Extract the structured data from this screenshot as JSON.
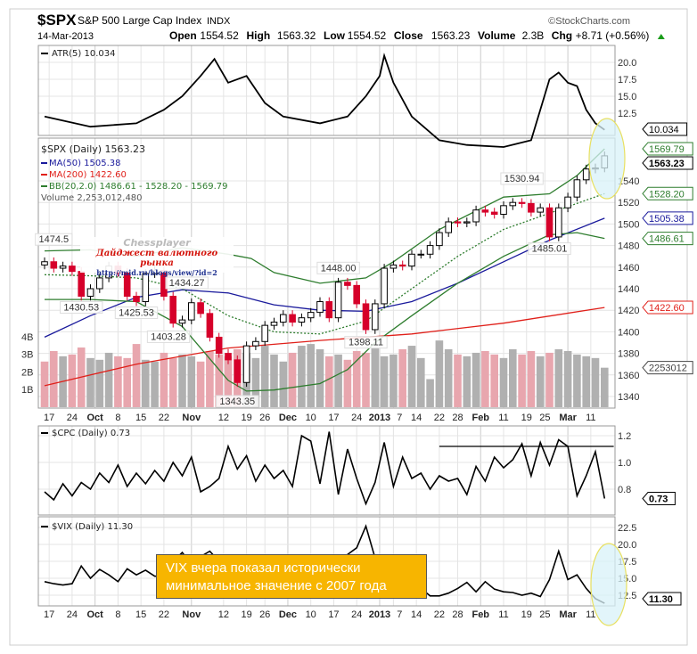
{
  "header": {
    "symbol": "$SPX",
    "name": "S&P 500 Large Cap Index",
    "exchange": "INDX",
    "date": "14-Mar-2013",
    "copyright": "©StockCharts.com",
    "open_label": "Open",
    "open": "1554.52",
    "high_label": "High",
    "high": "1563.32",
    "low_label": "Low",
    "low": "1554.52",
    "close_label": "Close",
    "close": "1563.23",
    "volume_label": "Volume",
    "volume": "2.3B",
    "chg_label": "Chg",
    "chg": "+8.71 (+0.56%)"
  },
  "legends": {
    "atr": "ATR(5) 10.034",
    "spx": "$SPX (Daily) 1563.23",
    "ma50": "MA(50) 1505.38",
    "ma200": "MA(200) 1422.60",
    "bb": "BB(20,2.0) 1486.61 - 1528.20 - 1569.79",
    "volume": "Volume 2,253,012,480",
    "cpc": "$CPC (Daily) 0.73",
    "vix": "$VIX (Daily) 11.30"
  },
  "watermark": {
    "title": "Chessplayer",
    "subtitle": "Дайджест валютного рынка",
    "url": "http://mid.ru/blogs/view/?id=2"
  },
  "callout": {
    "line1": "VIX вчера показал исторически",
    "line2": "минимальное значение с 2007 года"
  },
  "colors": {
    "up": "#ffffff",
    "down": "#d6002a",
    "ma50": "#1a1a9c",
    "ma200": "#e0201a",
    "bb": "#2e7d2e",
    "vol_up": "#b0b0b0",
    "vol_down": "#e8a6ae",
    "callout": "#f7b500",
    "highlight": "#d8f2f8"
  },
  "chart_data": [
    {
      "type": "line",
      "title": "ATR(5)",
      "x_index": [
        0,
        10,
        20,
        26,
        30,
        34,
        37,
        40,
        44,
        48,
        52,
        60,
        66,
        70,
        73,
        74,
        76,
        80,
        86,
        92,
        100,
        106,
        108,
        110,
        112,
        114,
        116,
        118,
        120,
        122
      ],
      "values": [
        12,
        10.5,
        11,
        13,
        15,
        18,
        20.5,
        17,
        18,
        14,
        12,
        11,
        12,
        15,
        18,
        21,
        17,
        12,
        8.5,
        7.8,
        7.5,
        8.5,
        13,
        17.5,
        18.5,
        17,
        16.5,
        13,
        11,
        10.034
      ],
      "ylim": [
        8,
        21.5
      ],
      "yticks": [
        "20.0",
        "17.5",
        "15.0",
        "12.5"
      ],
      "last_label": "10.034"
    },
    {
      "type": "candlestick",
      "title": "$SPX (Daily)",
      "x_index_step": 2,
      "closes": [
        1465,
        1459,
        1461,
        1456,
        1433,
        1440,
        1450,
        1461,
        1455,
        1433,
        1428,
        1454,
        1457,
        1433,
        1408,
        1411,
        1427,
        1417,
        1395,
        1380,
        1374,
        1353,
        1387,
        1391,
        1406,
        1409,
        1416,
        1409,
        1413,
        1418,
        1428,
        1413,
        1446,
        1443,
        1426,
        1402,
        1426,
        1459,
        1462,
        1461,
        1472,
        1472,
        1480,
        1492,
        1502,
        1501,
        1502,
        1513,
        1511,
        1509,
        1517,
        1520,
        1519,
        1511,
        1515,
        1488,
        1515,
        1525,
        1541,
        1551,
        1552,
        1563.23
      ],
      "volume_billions": [
        2.6,
        3.2,
        2.9,
        3.0,
        3.4,
        2.8,
        2.7,
        3.1,
        2.9,
        2.8,
        3.6,
        2.7,
        2.6,
        3.1,
        2.8,
        3.0,
        2.9,
        2.6,
        3.2,
        3.0,
        2.9,
        3.3,
        3.1,
        2.8,
        3.5,
        3.0,
        2.6,
        3.1,
        3.5,
        3.6,
        3.3,
        2.9,
        3.0,
        2.7,
        3.2,
        3.1,
        3.4,
        2.9,
        3.0,
        3.3,
        3.5,
        2.8,
        1.6,
        3.8,
        3.3,
        3.0,
        2.9,
        3.1,
        3.2,
        3.0,
        2.8,
        3.3,
        3.0,
        3.2,
        2.9,
        3.1,
        3.3,
        3.2,
        3.0,
        2.9,
        2.8,
        2.25
      ],
      "ma50": {
        "x_index": [
          0,
          10,
          20,
          30,
          40,
          50,
          60,
          70,
          80,
          90,
          100,
          110,
          122
        ],
        "values": [
          1395,
          1415,
          1432,
          1439,
          1436,
          1425,
          1420,
          1419,
          1428,
          1445,
          1465,
          1485,
          1505.38
        ]
      },
      "ma200": {
        "x_index": [
          0,
          20,
          40,
          60,
          80,
          100,
          122
        ],
        "values": [
          1350,
          1370,
          1385,
          1392,
          1398,
          1408,
          1422.6
        ]
      },
      "bb_upper": {
        "x_index": [
          0,
          10,
          20,
          30,
          40,
          45,
          50,
          60,
          70,
          76,
          86,
          100,
          110,
          116,
          122
        ],
        "values": [
          1475,
          1476,
          1470,
          1478,
          1472,
          1468,
          1455,
          1445,
          1450,
          1465,
          1495,
          1525,
          1528,
          1545,
          1569.79
        ]
      },
      "bb_mid": {
        "x_index": [
          0,
          10,
          20,
          30,
          40,
          50,
          60,
          70,
          80,
          90,
          100,
          110,
          122
        ],
        "values": [
          1453,
          1452,
          1450,
          1440,
          1415,
          1400,
          1398,
          1410,
          1440,
          1470,
          1495,
          1510,
          1528.2
        ]
      },
      "bb_lower": {
        "x_index": [
          0,
          10,
          20,
          30,
          40,
          44,
          50,
          60,
          66,
          72,
          80,
          90,
          100,
          110,
          116,
          122
        ],
        "values": [
          1430,
          1430,
          1428,
          1405,
          1355,
          1345,
          1346,
          1352,
          1365,
          1390,
          1415,
          1445,
          1470,
          1490,
          1492,
          1486.61
        ]
      },
      "annotations": [
        {
          "i": 2,
          "value": 1474.51,
          "label": "1474.5",
          "pos": "above"
        },
        {
          "i": 8,
          "value": 1430.53,
          "label": "1430.53",
          "pos": "below"
        },
        {
          "i": 20,
          "value": 1425.53,
          "label": "1425.53",
          "pos": "below"
        },
        {
          "i": 31,
          "value": 1434.27,
          "label": "1434.27",
          "pos": "above"
        },
        {
          "i": 27,
          "value": 1403.28,
          "label": "1403.28",
          "pos": "below"
        },
        {
          "i": 42,
          "value": 1343.35,
          "label": "1343.35",
          "pos": "below"
        },
        {
          "i": 64,
          "value": 1448.0,
          "label": "1448.00",
          "pos": "above"
        },
        {
          "i": 70,
          "value": 1398.11,
          "label": "1398.11",
          "pos": "below"
        },
        {
          "i": 104,
          "value": 1530.94,
          "label": "1530.94",
          "pos": "above"
        },
        {
          "i": 110,
          "value": 1485.01,
          "label": "1485.01",
          "pos": "below"
        }
      ],
      "yticks": [
        "1540",
        "1520",
        "1500",
        "1480",
        "1460",
        "1440",
        "1420",
        "1400",
        "1380",
        "1360",
        "1340"
      ],
      "volume_ticks": [
        "1B",
        "2B",
        "3B",
        "4B"
      ],
      "right_badges": [
        {
          "value": 1569.79,
          "label": "1569.79",
          "color": "#2e7d2e"
        },
        {
          "value": 1563.23,
          "label": "1563.23",
          "color": "#000000"
        },
        {
          "value": 1528.2,
          "label": "1528.20",
          "color": "#2e7d2e"
        },
        {
          "value": 1505.38,
          "label": "1505.38",
          "color": "#1a1a9c"
        },
        {
          "value": 1486.61,
          "label": "1486.61",
          "color": "#2e7d2e"
        },
        {
          "value": 1422.6,
          "label": "1422.60",
          "color": "#e0201a"
        }
      ],
      "volume_badge": "2253012",
      "ylim": [
        1330,
        1575
      ]
    },
    {
      "type": "line",
      "title": "$CPC (Daily)",
      "x_index_step": 2,
      "values": [
        0.78,
        0.72,
        0.84,
        0.75,
        0.85,
        0.8,
        0.92,
        0.85,
        0.98,
        0.82,
        0.92,
        0.84,
        0.94,
        0.86,
        1.0,
        0.9,
        1.04,
        0.78,
        0.82,
        0.88,
        1.12,
        0.95,
        1.05,
        0.86,
        0.98,
        0.88,
        0.94,
        0.82,
        1.2,
        1.16,
        0.84,
        1.23,
        0.76,
        1.1,
        0.88,
        0.69,
        0.85,
        1.15,
        0.82,
        1.04,
        0.88,
        0.92,
        0.8,
        0.9,
        0.86,
        0.88,
        0.76,
        0.97,
        0.86,
        1.04,
        0.96,
        1.02,
        1.14,
        0.9,
        1.15,
        0.98,
        1.17,
        1.12,
        0.75,
        0.9,
        1.08,
        0.73
      ],
      "reference_line": {
        "value": 1.12,
        "from_index": 86,
        "to_index": 124
      },
      "yticks": [
        "1.2",
        "1.0",
        "0.8"
      ],
      "last_label": "0.73",
      "ylim": [
        0.65,
        1.26
      ]
    },
    {
      "type": "line",
      "title": "$VIX (Daily)",
      "x_index_step": 2,
      "values": [
        14.5,
        14.2,
        14.0,
        14.2,
        16.8,
        15.0,
        16.3,
        15.5,
        14.5,
        16.4,
        15.5,
        16.2,
        15.3,
        15.3,
        17.5,
        18.8,
        17.0,
        18.2,
        19.0,
        17.5,
        16.5,
        17.9,
        15.3,
        15.1,
        15.2,
        15.5,
        16.6,
        16.5,
        16.5,
        15.5,
        15.9,
        16.4,
        17.4,
        18.5,
        19.5,
        22.7,
        18.0,
        13.8,
        13.6,
        13.5,
        13.4,
        13.5,
        12.4,
        12.4,
        12.8,
        13.5,
        14.4,
        13.0,
        14.5,
        13.4,
        13.0,
        12.9,
        12.5,
        12.8,
        12.3,
        14.8,
        19.0,
        14.8,
        15.5,
        13.5,
        12.0,
        11.3
      ],
      "yticks": [
        "22.5",
        "20.0",
        "17.5",
        "15.0",
        "12.5"
      ],
      "last_label": "11.30",
      "ylim": [
        10.5,
        23.5
      ]
    }
  ],
  "date_axis": [
    {
      "label": "17",
      "i": 1
    },
    {
      "label": "24",
      "i": 6
    },
    {
      "label": "Oct",
      "i": 11,
      "bold": true
    },
    {
      "label": "8",
      "i": 16
    },
    {
      "label": "15",
      "i": 21
    },
    {
      "label": "22",
      "i": 26
    },
    {
      "label": "Nov",
      "i": 32,
      "bold": true
    },
    {
      "label": "12",
      "i": 39
    },
    {
      "label": "19",
      "i": 44
    },
    {
      "label": "26",
      "i": 48
    },
    {
      "label": "Dec",
      "i": 53,
      "bold": true
    },
    {
      "label": "10",
      "i": 58
    },
    {
      "label": "17",
      "i": 63
    },
    {
      "label": "24",
      "i": 68
    },
    {
      "label": "2013",
      "i": 73,
      "bold": true
    },
    {
      "label": "7",
      "i": 76
    },
    {
      "label": "14",
      "i": 81
    },
    {
      "label": "22",
      "i": 86
    },
    {
      "label": "28",
      "i": 90
    },
    {
      "label": "Feb",
      "i": 95,
      "bold": true
    },
    {
      "label": "11",
      "i": 100
    },
    {
      "label": "19",
      "i": 105
    },
    {
      "label": "25",
      "i": 109
    },
    {
      "label": "Mar",
      "i": 114,
      "bold": true
    },
    {
      "label": "11",
      "i": 119
    }
  ]
}
